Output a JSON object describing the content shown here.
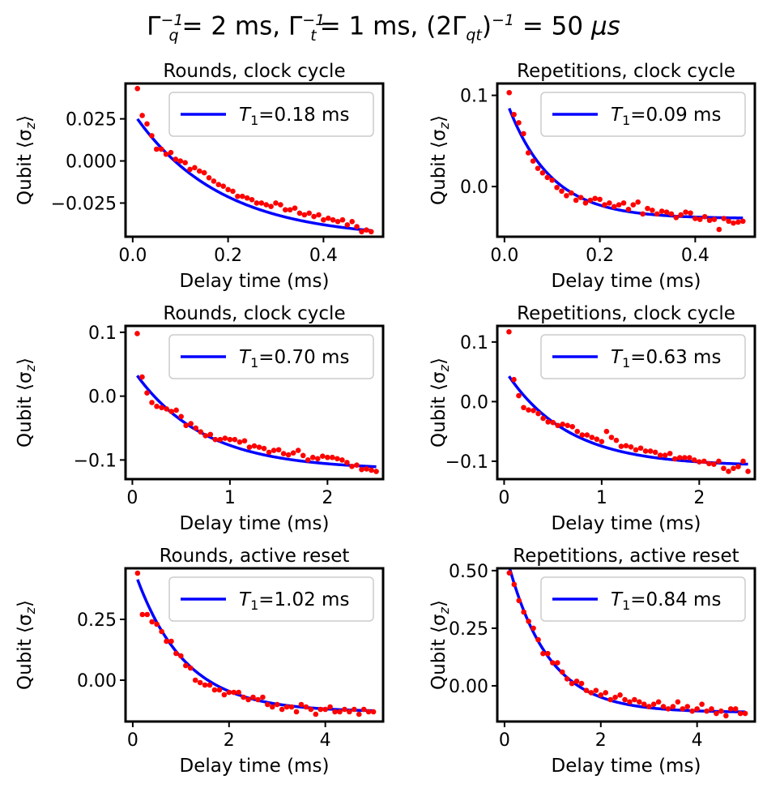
{
  "figure": {
    "title": {
      "gq_sup": "−1",
      "gq_sub": "q",
      "gq_val": "= 2 ms,",
      "gt_sup": "−1",
      "gt_sub": "t",
      "gt_val": "= 1 ms,",
      "gqt_open": "(2Γ",
      "gqt_sub": "qt",
      "gqt_close": ")",
      "gqt_sup": "−1",
      "gqt_val": "= 50",
      "gqt_unit": "μs"
    }
  },
  "colors": {
    "data": "#ff0000",
    "fit": "#0000ff",
    "axes": "#000000"
  },
  "chart_data": [
    {
      "type": "scatter",
      "title": "Rounds, clock cycle",
      "xlabel": "Delay time (ms)",
      "ylabel": "Qubit ⟨σ_z⟩",
      "xlim": [
        -0.015,
        0.525
      ],
      "ylim": [
        -0.045,
        0.046
      ],
      "xticks": [
        0.0,
        0.2,
        0.4
      ],
      "xticklabels": [
        "0.0",
        "0.2",
        "0.4"
      ],
      "yticks": [
        -0.025,
        0.0,
        0.025
      ],
      "yticklabels": [
        "−0.025",
        "0.000",
        "0.025"
      ],
      "legend": {
        "label": "=0.18 ms",
        "symbol": "T",
        "sub": "1",
        "position": "upper-right"
      },
      "fit": {
        "A": 0.075,
        "tau": 0.18,
        "C": -0.046,
        "x_range": [
          0.01,
          0.5
        ]
      },
      "series": [
        {
          "name": "data",
          "x": [
            0.01,
            0.02,
            0.03,
            0.04,
            0.05,
            0.06,
            0.07,
            0.08,
            0.09,
            0.1,
            0.11,
            0.12,
            0.13,
            0.14,
            0.15,
            0.16,
            0.17,
            0.18,
            0.19,
            0.2,
            0.21,
            0.22,
            0.23,
            0.24,
            0.25,
            0.26,
            0.27,
            0.28,
            0.29,
            0.3,
            0.31,
            0.32,
            0.33,
            0.34,
            0.35,
            0.36,
            0.37,
            0.38,
            0.39,
            0.4,
            0.41,
            0.42,
            0.43,
            0.44,
            0.45,
            0.46,
            0.47,
            0.48,
            0.49,
            0.5
          ],
          "y": [
            0.043,
            0.027,
            0.022,
            0.015,
            0.007,
            0.007,
            0.004,
            0.005,
            0.001,
            0.0,
            -0.001,
            -0.005,
            -0.004,
            -0.006,
            -0.007,
            -0.01,
            -0.012,
            -0.014,
            -0.015,
            -0.017,
            -0.018,
            -0.021,
            -0.021,
            -0.022,
            -0.023,
            -0.025,
            -0.025,
            -0.026,
            -0.027,
            -0.025,
            -0.026,
            -0.029,
            -0.029,
            -0.028,
            -0.031,
            -0.032,
            -0.031,
            -0.033,
            -0.032,
            -0.035,
            -0.034,
            -0.035,
            -0.036,
            -0.035,
            -0.038,
            -0.036,
            -0.039,
            -0.042,
            -0.041,
            -0.042
          ]
        },
        {
          "name": "fit",
          "label": "T_1=0.18 ms"
        }
      ]
    },
    {
      "type": "scatter",
      "title": "Repetitions, clock cycle",
      "xlabel": "Delay time (ms)",
      "ylabel": "Qubit ⟨σ_z⟩",
      "xlim": [
        -0.015,
        0.525
      ],
      "ylim": [
        -0.055,
        0.113
      ],
      "xticks": [
        0.0,
        0.2,
        0.4
      ],
      "xticklabels": [
        "0.0",
        "0.2",
        "0.4"
      ],
      "yticks": [
        0.0,
        0.1
      ],
      "yticklabels": [
        "0.0",
        "0.1"
      ],
      "legend": {
        "label": "=0.09 ms",
        "symbol": "T",
        "sub": "1",
        "position": "upper-right"
      },
      "fit": {
        "A": 0.135,
        "tau": 0.09,
        "C": -0.035,
        "x_range": [
          0.01,
          0.5
        ]
      },
      "series": [
        {
          "name": "data",
          "x": [
            0.01,
            0.02,
            0.03,
            0.04,
            0.05,
            0.06,
            0.07,
            0.08,
            0.09,
            0.1,
            0.11,
            0.12,
            0.13,
            0.14,
            0.15,
            0.16,
            0.17,
            0.18,
            0.19,
            0.2,
            0.21,
            0.22,
            0.23,
            0.24,
            0.25,
            0.26,
            0.27,
            0.28,
            0.29,
            0.3,
            0.31,
            0.32,
            0.33,
            0.34,
            0.35,
            0.36,
            0.37,
            0.38,
            0.39,
            0.4,
            0.41,
            0.42,
            0.43,
            0.44,
            0.45,
            0.46,
            0.47,
            0.48,
            0.49,
            0.5
          ],
          "y": [
            0.103,
            0.079,
            0.07,
            0.058,
            0.037,
            0.028,
            0.02,
            0.015,
            0.01,
            0.007,
            -0.001,
            -0.005,
            -0.01,
            -0.007,
            -0.015,
            -0.012,
            -0.018,
            -0.015,
            -0.013,
            -0.014,
            -0.02,
            -0.018,
            -0.022,
            -0.02,
            -0.018,
            -0.025,
            -0.02,
            -0.017,
            -0.03,
            -0.024,
            -0.026,
            -0.03,
            -0.027,
            -0.028,
            -0.03,
            -0.034,
            -0.031,
            -0.028,
            -0.029,
            -0.035,
            -0.036,
            -0.033,
            -0.037,
            -0.036,
            -0.047,
            -0.035,
            -0.038,
            -0.04,
            -0.039,
            -0.038
          ]
        },
        {
          "name": "fit",
          "label": "T_1=0.09 ms"
        }
      ]
    },
    {
      "type": "scatter",
      "title": "Rounds, clock cycle",
      "xlabel": "Delay time (ms)",
      "ylabel": "Qubit ⟨σ_z⟩",
      "xlim": [
        -0.07,
        2.57
      ],
      "ylim": [
        -0.13,
        0.11
      ],
      "xticks": [
        0,
        1,
        2
      ],
      "xticklabels": [
        "0",
        "1",
        "2"
      ],
      "yticks": [
        -0.1,
        0.0,
        0.1
      ],
      "yticklabels": [
        "−0.1",
        "0.0",
        "0.1"
      ],
      "legend": {
        "label": "=0.70 ms",
        "symbol": "T",
        "sub": "1",
        "position": "upper-right"
      },
      "fit": {
        "A": 0.158,
        "tau": 0.7,
        "C": -0.115,
        "x_range": [
          0.05,
          2.5
        ]
      },
      "series": [
        {
          "name": "data",
          "x": [
            0.05,
            0.1,
            0.15,
            0.2,
            0.25,
            0.3,
            0.35,
            0.4,
            0.45,
            0.5,
            0.55,
            0.6,
            0.65,
            0.7,
            0.75,
            0.8,
            0.85,
            0.9,
            0.95,
            1.0,
            1.05,
            1.1,
            1.15,
            1.2,
            1.25,
            1.3,
            1.35,
            1.4,
            1.45,
            1.5,
            1.55,
            1.6,
            1.65,
            1.7,
            1.75,
            1.8,
            1.85,
            1.9,
            1.95,
            2.0,
            2.05,
            2.1,
            2.15,
            2.2,
            2.25,
            2.3,
            2.35,
            2.4,
            2.45,
            2.5
          ],
          "y": [
            0.098,
            0.03,
            0.005,
            -0.01,
            -0.016,
            -0.018,
            -0.02,
            -0.024,
            -0.022,
            -0.032,
            -0.046,
            -0.043,
            -0.05,
            -0.056,
            -0.062,
            -0.06,
            -0.068,
            -0.068,
            -0.066,
            -0.068,
            -0.068,
            -0.072,
            -0.07,
            -0.08,
            -0.078,
            -0.08,
            -0.082,
            -0.088,
            -0.085,
            -0.084,
            -0.09,
            -0.092,
            -0.089,
            -0.085,
            -0.093,
            -0.1,
            -0.096,
            -0.098,
            -0.094,
            -0.096,
            -0.096,
            -0.098,
            -0.1,
            -0.104,
            -0.11,
            -0.108,
            -0.115,
            -0.114,
            -0.116,
            -0.118
          ]
        },
        {
          "name": "fit",
          "label": "T_1=0.70 ms"
        }
      ]
    },
    {
      "type": "scatter",
      "title": "Repetitions, clock cycle",
      "xlabel": "Delay time (ms)",
      "ylabel": "Qubit ⟨σ_z⟩",
      "xlim": [
        -0.07,
        2.57
      ],
      "ylim": [
        -0.13,
        0.127
      ],
      "xticks": [
        0,
        1,
        2
      ],
      "xticklabels": [
        "0",
        "1",
        "2"
      ],
      "yticks": [
        -0.1,
        0.0,
        0.1
      ],
      "yticklabels": [
        "−0.1",
        "0.0",
        "0.1"
      ],
      "legend": {
        "label": "=0.63 ms",
        "symbol": "T",
        "sub": "1",
        "position": "upper-right"
      },
      "fit": {
        "A": 0.163,
        "tau": 0.63,
        "C": -0.108,
        "x_range": [
          0.05,
          2.5
        ]
      },
      "series": [
        {
          "name": "data",
          "x": [
            0.05,
            0.1,
            0.15,
            0.2,
            0.25,
            0.3,
            0.35,
            0.4,
            0.45,
            0.5,
            0.55,
            0.6,
            0.65,
            0.7,
            0.75,
            0.8,
            0.85,
            0.9,
            0.95,
            1.0,
            1.05,
            1.1,
            1.15,
            1.2,
            1.25,
            1.3,
            1.35,
            1.4,
            1.45,
            1.5,
            1.55,
            1.6,
            1.65,
            1.7,
            1.75,
            1.8,
            1.85,
            1.9,
            1.95,
            2.0,
            2.05,
            2.1,
            2.15,
            2.2,
            2.25,
            2.3,
            2.35,
            2.4,
            2.45,
            2.5
          ],
          "y": [
            0.117,
            0.037,
            0.01,
            -0.01,
            -0.014,
            -0.015,
            -0.02,
            -0.028,
            -0.034,
            -0.035,
            -0.04,
            -0.038,
            -0.04,
            -0.042,
            -0.05,
            -0.056,
            -0.056,
            -0.06,
            -0.063,
            -0.067,
            -0.05,
            -0.06,
            -0.065,
            -0.075,
            -0.074,
            -0.076,
            -0.081,
            -0.078,
            -0.083,
            -0.083,
            -0.085,
            -0.09,
            -0.09,
            -0.087,
            -0.096,
            -0.094,
            -0.094,
            -0.094,
            -0.098,
            -0.101,
            -0.1,
            -0.104,
            -0.105,
            -0.1,
            -0.112,
            -0.117,
            -0.112,
            -0.109,
            -0.1,
            -0.117
          ]
        },
        {
          "name": "fit",
          "label": "T_1=0.63 ms"
        }
      ]
    },
    {
      "type": "scatter",
      "title": "Rounds, active reset",
      "xlabel": "Delay time (ms)",
      "ylabel": "Qubit ⟨σ_z⟩",
      "xlim": [
        -0.15,
        5.2
      ],
      "ylim": [
        -0.17,
        0.46
      ],
      "xticks": [
        0,
        2,
        4
      ],
      "xticklabels": [
        "0",
        "2",
        "4"
      ],
      "yticks": [
        0.0,
        0.25
      ],
      "yticklabels": [
        "0.00",
        "0.25"
      ],
      "legend": {
        "label": "=1.02 ms",
        "symbol": "T",
        "sub": "1",
        "position": "upper-right"
      },
      "fit": {
        "A": 0.6,
        "tau": 1.02,
        "C": -0.13,
        "x_range": [
          0.1,
          5.0
        ]
      },
      "series": [
        {
          "name": "data",
          "x": [
            0.1,
            0.2,
            0.3,
            0.4,
            0.5,
            0.6,
            0.7,
            0.8,
            0.9,
            1.0,
            1.1,
            1.2,
            1.3,
            1.4,
            1.5,
            1.6,
            1.7,
            1.8,
            1.9,
            2.0,
            2.1,
            2.2,
            2.3,
            2.4,
            2.5,
            2.6,
            2.7,
            2.8,
            2.9,
            3.0,
            3.1,
            3.2,
            3.3,
            3.4,
            3.5,
            3.6,
            3.7,
            3.8,
            3.9,
            4.0,
            4.1,
            4.2,
            4.3,
            4.4,
            4.5,
            4.6,
            4.7,
            4.8,
            4.9,
            5.0
          ],
          "y": [
            0.44,
            0.27,
            0.27,
            0.24,
            0.23,
            0.2,
            0.16,
            0.16,
            0.11,
            0.1,
            0.06,
            0.05,
            0.0,
            -0.01,
            -0.02,
            -0.02,
            -0.04,
            -0.04,
            -0.06,
            -0.05,
            -0.05,
            -0.05,
            -0.07,
            -0.08,
            -0.07,
            -0.08,
            -0.07,
            -0.1,
            -0.11,
            -0.1,
            -0.12,
            -0.11,
            -0.11,
            -0.13,
            -0.1,
            -0.11,
            -0.12,
            -0.14,
            -0.12,
            -0.12,
            -0.11,
            -0.13,
            -0.13,
            -0.12,
            -0.13,
            -0.12,
            -0.14,
            -0.12,
            -0.13,
            -0.13
          ]
        },
        {
          "name": "fit",
          "label": "T_1=1.02 ms"
        }
      ]
    },
    {
      "type": "scatter",
      "title": "Repetitions, active reset",
      "xlabel": "Delay time (ms)",
      "ylabel": "Qubit ⟨σ_z⟩",
      "xlim": [
        -0.15,
        5.2
      ],
      "ylim": [
        -0.155,
        0.51
      ],
      "xticks": [
        0,
        2,
        4
      ],
      "xticklabels": [
        "0",
        "2",
        "4"
      ],
      "yticks": [
        0.0,
        0.25,
        0.5
      ],
      "yticklabels": [
        "0.00",
        "0.25",
        "0.50"
      ],
      "legend": {
        "label": "=0.84 ms",
        "symbol": "T",
        "sub": "1",
        "position": "upper-right"
      },
      "fit": {
        "A": 0.71,
        "tau": 0.84,
        "C": -0.115,
        "x_range": [
          0.1,
          5.0
        ]
      },
      "series": [
        {
          "name": "data",
          "x": [
            0.1,
            0.2,
            0.3,
            0.4,
            0.5,
            0.6,
            0.7,
            0.8,
            0.9,
            1.0,
            1.1,
            1.2,
            1.3,
            1.4,
            1.5,
            1.6,
            1.7,
            1.8,
            1.9,
            2.0,
            2.1,
            2.2,
            2.3,
            2.4,
            2.5,
            2.6,
            2.7,
            2.8,
            2.9,
            3.0,
            3.1,
            3.2,
            3.3,
            3.4,
            3.5,
            3.6,
            3.7,
            3.8,
            3.9,
            4.0,
            4.1,
            4.2,
            4.3,
            4.4,
            4.5,
            4.6,
            4.7,
            4.8,
            4.9,
            5.0
          ],
          "y": [
            0.49,
            0.44,
            0.37,
            0.32,
            0.28,
            0.25,
            0.2,
            0.14,
            0.14,
            0.1,
            0.1,
            0.06,
            0.03,
            0.01,
            0.02,
            0.01,
            -0.02,
            -0.03,
            -0.02,
            -0.04,
            -0.03,
            -0.06,
            -0.05,
            -0.04,
            -0.06,
            -0.07,
            -0.06,
            -0.07,
            -0.08,
            -0.09,
            -0.08,
            -0.07,
            -0.09,
            -0.1,
            -0.09,
            -0.07,
            -0.1,
            -0.09,
            -0.11,
            -0.1,
            -0.08,
            -0.11,
            -0.1,
            -0.12,
            -0.11,
            -0.13,
            -0.1,
            -0.1,
            -0.12,
            -0.12
          ]
        },
        {
          "name": "fit",
          "label": "T_1=0.84 ms"
        }
      ]
    }
  ]
}
